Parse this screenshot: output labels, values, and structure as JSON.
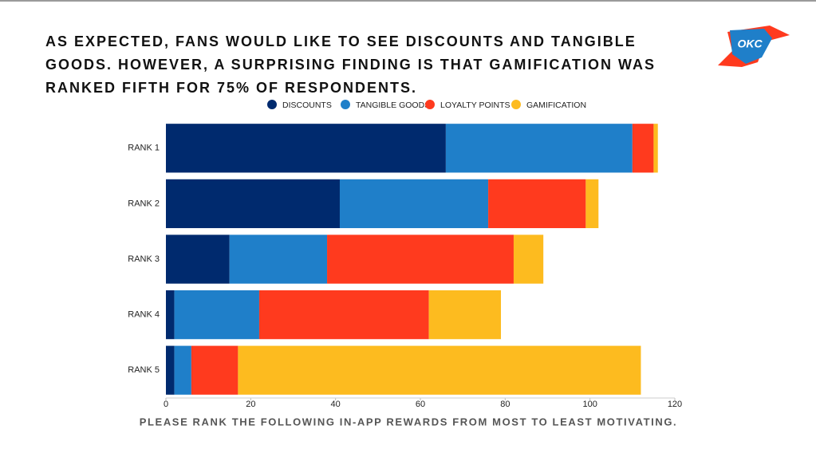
{
  "chart_data": {
    "type": "stacked-barh",
    "title": "As expected, fans would like to see discounts and tangible goods. However, a surprising finding is that gamification was ranked fifth for 75% of respondents.",
    "logo": "OKC",
    "xlabel": "PLEASE RANK THE FOLLOWING IN-APP REWARDS FROM MOST TO LEAST MOTIVATING.",
    "categories": [
      "RANK 1",
      "RANK 2",
      "RANK 3",
      "RANK 4",
      "RANK 5"
    ],
    "series": [
      {
        "name": "DISCOUNTS",
        "color": "#002a6e",
        "values": [
          66,
          41,
          15,
          2,
          2
        ]
      },
      {
        "name": "TANGIBLE GOODS",
        "color": "#1f7fc9",
        "values": [
          44,
          35,
          23,
          20,
          4
        ]
      },
      {
        "name": "LOYALTY POINTS",
        "color": "#ff3a1e",
        "values": [
          5,
          23,
          44,
          40,
          11
        ]
      },
      {
        "name": "GAMIFICATION",
        "color": "#fdbb1f",
        "values": [
          1,
          3,
          7,
          17,
          95
        ]
      }
    ],
    "xlim": [
      0,
      120
    ],
    "xticks": [
      0,
      20,
      40,
      60,
      80,
      100,
      120
    ],
    "legend": "top"
  }
}
